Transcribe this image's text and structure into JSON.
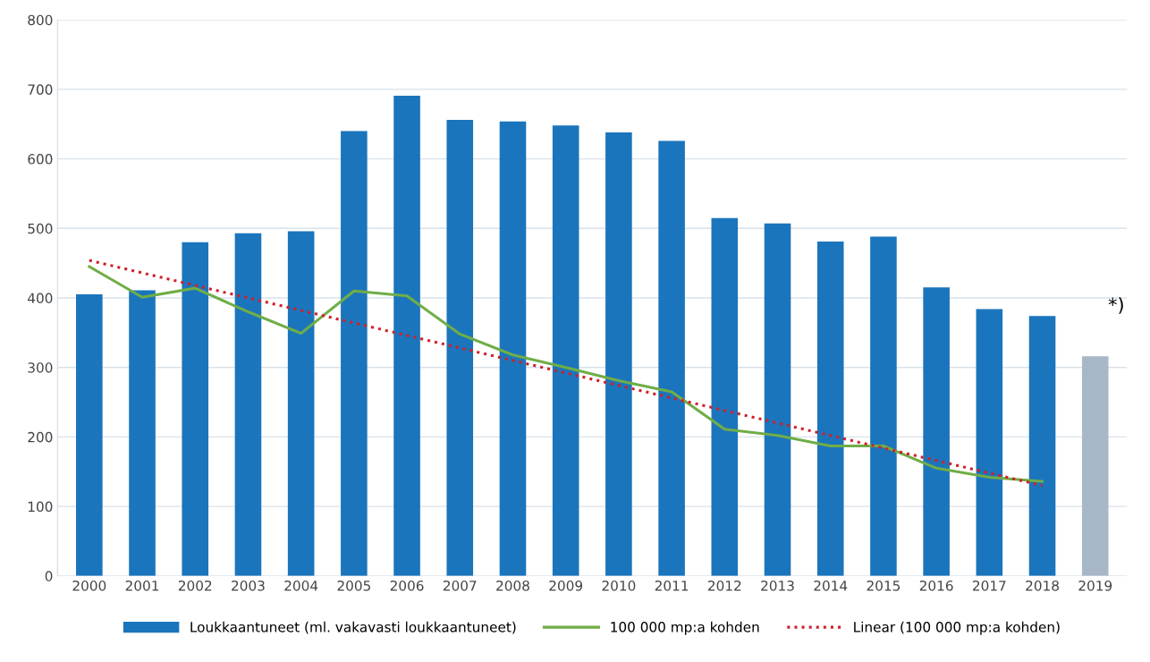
{
  "chart_data": {
    "type": "bar",
    "categories": [
      "2000",
      "2001",
      "2002",
      "2003",
      "2004",
      "2005",
      "2006",
      "2007",
      "2008",
      "2009",
      "2010",
      "2011",
      "2012",
      "2013",
      "2014",
      "2015",
      "2016",
      "2017",
      "2018",
      "2019"
    ],
    "series": [
      {
        "name": "Loukkaantuneet (ml. vakavasti loukkaantuneet)",
        "color": "#1b75bc",
        "colors": [
          "#1b75bc",
          "#1b75bc",
          "#1b75bc",
          "#1b75bc",
          "#1b75bc",
          "#1b75bc",
          "#1b75bc",
          "#1b75bc",
          "#1b75bc",
          "#1b75bc",
          "#1b75bc",
          "#1b75bc",
          "#1b75bc",
          "#1b75bc",
          "#1b75bc",
          "#1b75bc",
          "#1b75bc",
          "#1b75bc",
          "#1b75bc",
          "#a7b7c8"
        ],
        "values": [
          405,
          411,
          480,
          493,
          496,
          640,
          691,
          656,
          654,
          648,
          638,
          626,
          515,
          507,
          481,
          488,
          415,
          384,
          374,
          316
        ]
      },
      {
        "name": "100 000 mp:a kohden",
        "type": "line",
        "color": "#70ad47",
        "line_style": "solid",
        "values": [
          445,
          401,
          414,
          380,
          349,
          410,
          403,
          348,
          318,
          300,
          281,
          265,
          211,
          202,
          187,
          187,
          155,
          142,
          136,
          null
        ]
      },
      {
        "name": "Linear (100 000 mp:a kohden)",
        "type": "line",
        "color": "#d0202a",
        "line_style": "dotted",
        "values": [
          454,
          436,
          418,
          400,
          382,
          364,
          346,
          328,
          310,
          292,
          274,
          256,
          238,
          220,
          202,
          184,
          166,
          148,
          130,
          null
        ]
      }
    ],
    "ylim": [
      0,
      800
    ],
    "yticks": [
      0,
      100,
      200,
      300,
      400,
      500,
      600,
      700,
      800
    ],
    "grid": "y",
    "legend": "bottom",
    "annotations": [
      "*)"
    ]
  }
}
